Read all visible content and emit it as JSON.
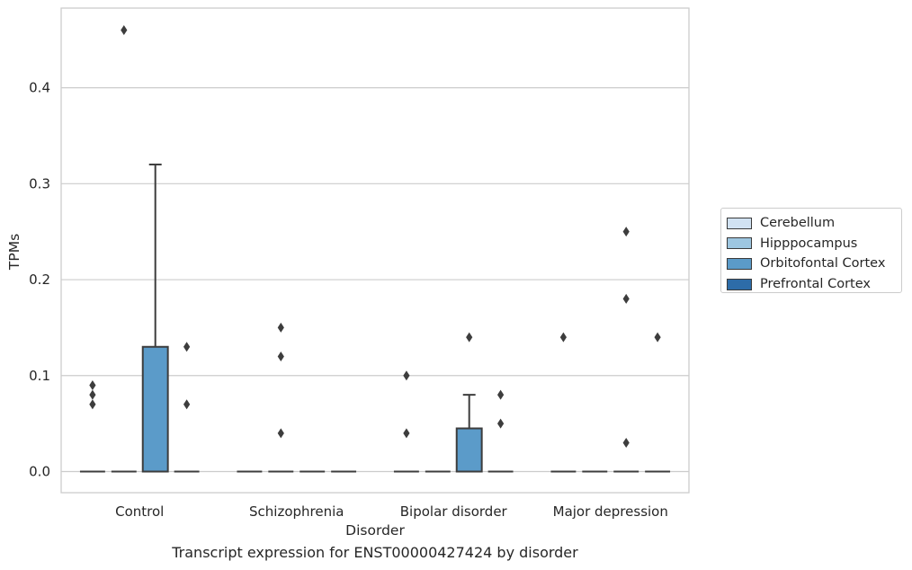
{
  "chart_data": {
    "type": "box",
    "title": "",
    "xlabel": "Disorder",
    "ylabel": "TPMs",
    "caption": "Transcript expression for ENST00000427424 by disorder",
    "ylim": [
      -0.022,
      0.483
    ],
    "yticks": [
      0.0,
      0.1,
      0.2,
      0.3,
      0.4
    ],
    "ytick_labels": [
      "0.0",
      "0.1",
      "0.2",
      "0.3",
      "0.4"
    ],
    "categories": [
      "Control",
      "Schizophrenia",
      "Bipolar disorder",
      "Major depression"
    ],
    "grid": "horizontal",
    "legend_position": "right",
    "series": [
      {
        "name": "Cerebellum",
        "color": "#d1e2f2",
        "boxes": [
          {
            "q1": 0,
            "median": 0,
            "q3": 0,
            "whisker_low": 0,
            "whisker_high": 0,
            "outliers": [
              0.09,
              0.08,
              0.07
            ]
          },
          {
            "q1": 0,
            "median": 0,
            "q3": 0,
            "whisker_low": 0,
            "whisker_high": 0,
            "outliers": []
          },
          {
            "q1": 0,
            "median": 0,
            "q3": 0,
            "whisker_low": 0,
            "whisker_high": 0,
            "outliers": [
              0.1,
              0.04
            ]
          },
          {
            "q1": 0,
            "median": 0,
            "q3": 0,
            "whisker_low": 0,
            "whisker_high": 0,
            "outliers": [
              0.14
            ]
          }
        ]
      },
      {
        "name": "Hipppocampus",
        "color": "#9dc6e0",
        "boxes": [
          {
            "q1": 0,
            "median": 0,
            "q3": 0,
            "whisker_low": 0,
            "whisker_high": 0,
            "outliers": [
              0.46
            ]
          },
          {
            "q1": 0,
            "median": 0,
            "q3": 0,
            "whisker_low": 0,
            "whisker_high": 0,
            "outliers": [
              0.15,
              0.12,
              0.04
            ]
          },
          {
            "q1": 0,
            "median": 0,
            "q3": 0,
            "whisker_low": 0,
            "whisker_high": 0,
            "outliers": []
          },
          {
            "q1": 0,
            "median": 0,
            "q3": 0,
            "whisker_low": 0,
            "whisker_high": 0,
            "outliers": []
          }
        ]
      },
      {
        "name": "Orbitofontal Cortex",
        "color": "#5b9bc9",
        "boxes": [
          {
            "q1": 0,
            "median": 0,
            "q3": 0.13,
            "whisker_low": 0,
            "whisker_high": 0.32,
            "outliers": []
          },
          {
            "q1": 0,
            "median": 0,
            "q3": 0,
            "whisker_low": 0,
            "whisker_high": 0,
            "outliers": []
          },
          {
            "q1": 0,
            "median": 0,
            "q3": 0.045,
            "whisker_low": 0,
            "whisker_high": 0.08,
            "outliers": [
              0.14
            ]
          },
          {
            "q1": 0,
            "median": 0,
            "q3": 0,
            "whisker_low": 0,
            "whisker_high": 0,
            "outliers": [
              0.25,
              0.18,
              0.03
            ]
          }
        ]
      },
      {
        "name": "Prefrontal Cortex",
        "color": "#2d6ca8",
        "boxes": [
          {
            "q1": 0,
            "median": 0,
            "q3": 0,
            "whisker_low": 0,
            "whisker_high": 0,
            "outliers": [
              0.13,
              0.07
            ]
          },
          {
            "q1": 0,
            "median": 0,
            "q3": 0,
            "whisker_low": 0,
            "whisker_high": 0,
            "outliers": []
          },
          {
            "q1": 0,
            "median": 0,
            "q3": 0,
            "whisker_low": 0,
            "whisker_high": 0,
            "outliers": [
              0.08,
              0.05
            ]
          },
          {
            "q1": 0,
            "median": 0,
            "q3": 0,
            "whisker_low": 0,
            "whisker_high": 0,
            "outliers": [
              0.14
            ]
          }
        ]
      }
    ]
  }
}
